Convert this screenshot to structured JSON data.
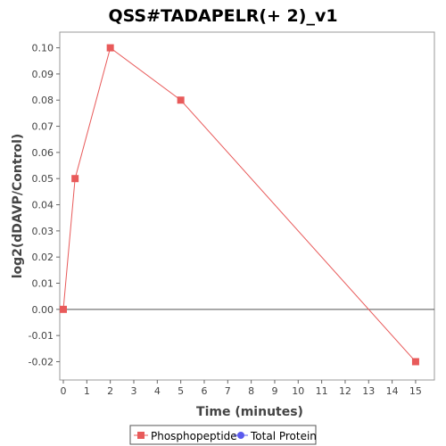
{
  "chart_data": {
    "type": "line",
    "title": "QSS#TADAPELR(+ 2)_v1",
    "xlabel": "Time (minutes)",
    "ylabel": "log2(dDAVP/Control)",
    "xlim": [
      0,
      15.8
    ],
    "ylim": [
      -0.027,
      0.106
    ],
    "xticks": [
      0,
      1,
      2,
      3,
      4,
      5,
      6,
      7,
      8,
      9,
      10,
      11,
      12,
      13,
      14,
      15
    ],
    "yticks": [
      -0.02,
      -0.01,
      0.0,
      0.01,
      0.02,
      0.03,
      0.04,
      0.05,
      0.06,
      0.07,
      0.08,
      0.09,
      0.1
    ],
    "ytick_labels": [
      "-0.02",
      "-0.01",
      "0.00",
      "0.01",
      "0.02",
      "0.03",
      "0.04",
      "0.05",
      "0.06",
      "0.07",
      "0.08",
      "0.09",
      "0.10"
    ],
    "series": [
      {
        "name": "Phosphopeptide",
        "color": "#e85a5a",
        "marker": "square",
        "x": [
          0,
          0.5,
          2,
          5,
          15
        ],
        "y": [
          0.0,
          0.05,
          0.1,
          0.08,
          -0.02
        ]
      },
      {
        "name": "Total Protein",
        "color": "#5a5aee",
        "marker": "circle",
        "x": [],
        "y": []
      }
    ],
    "zero_line": true,
    "grid": false,
    "legend_position": "bottom"
  }
}
